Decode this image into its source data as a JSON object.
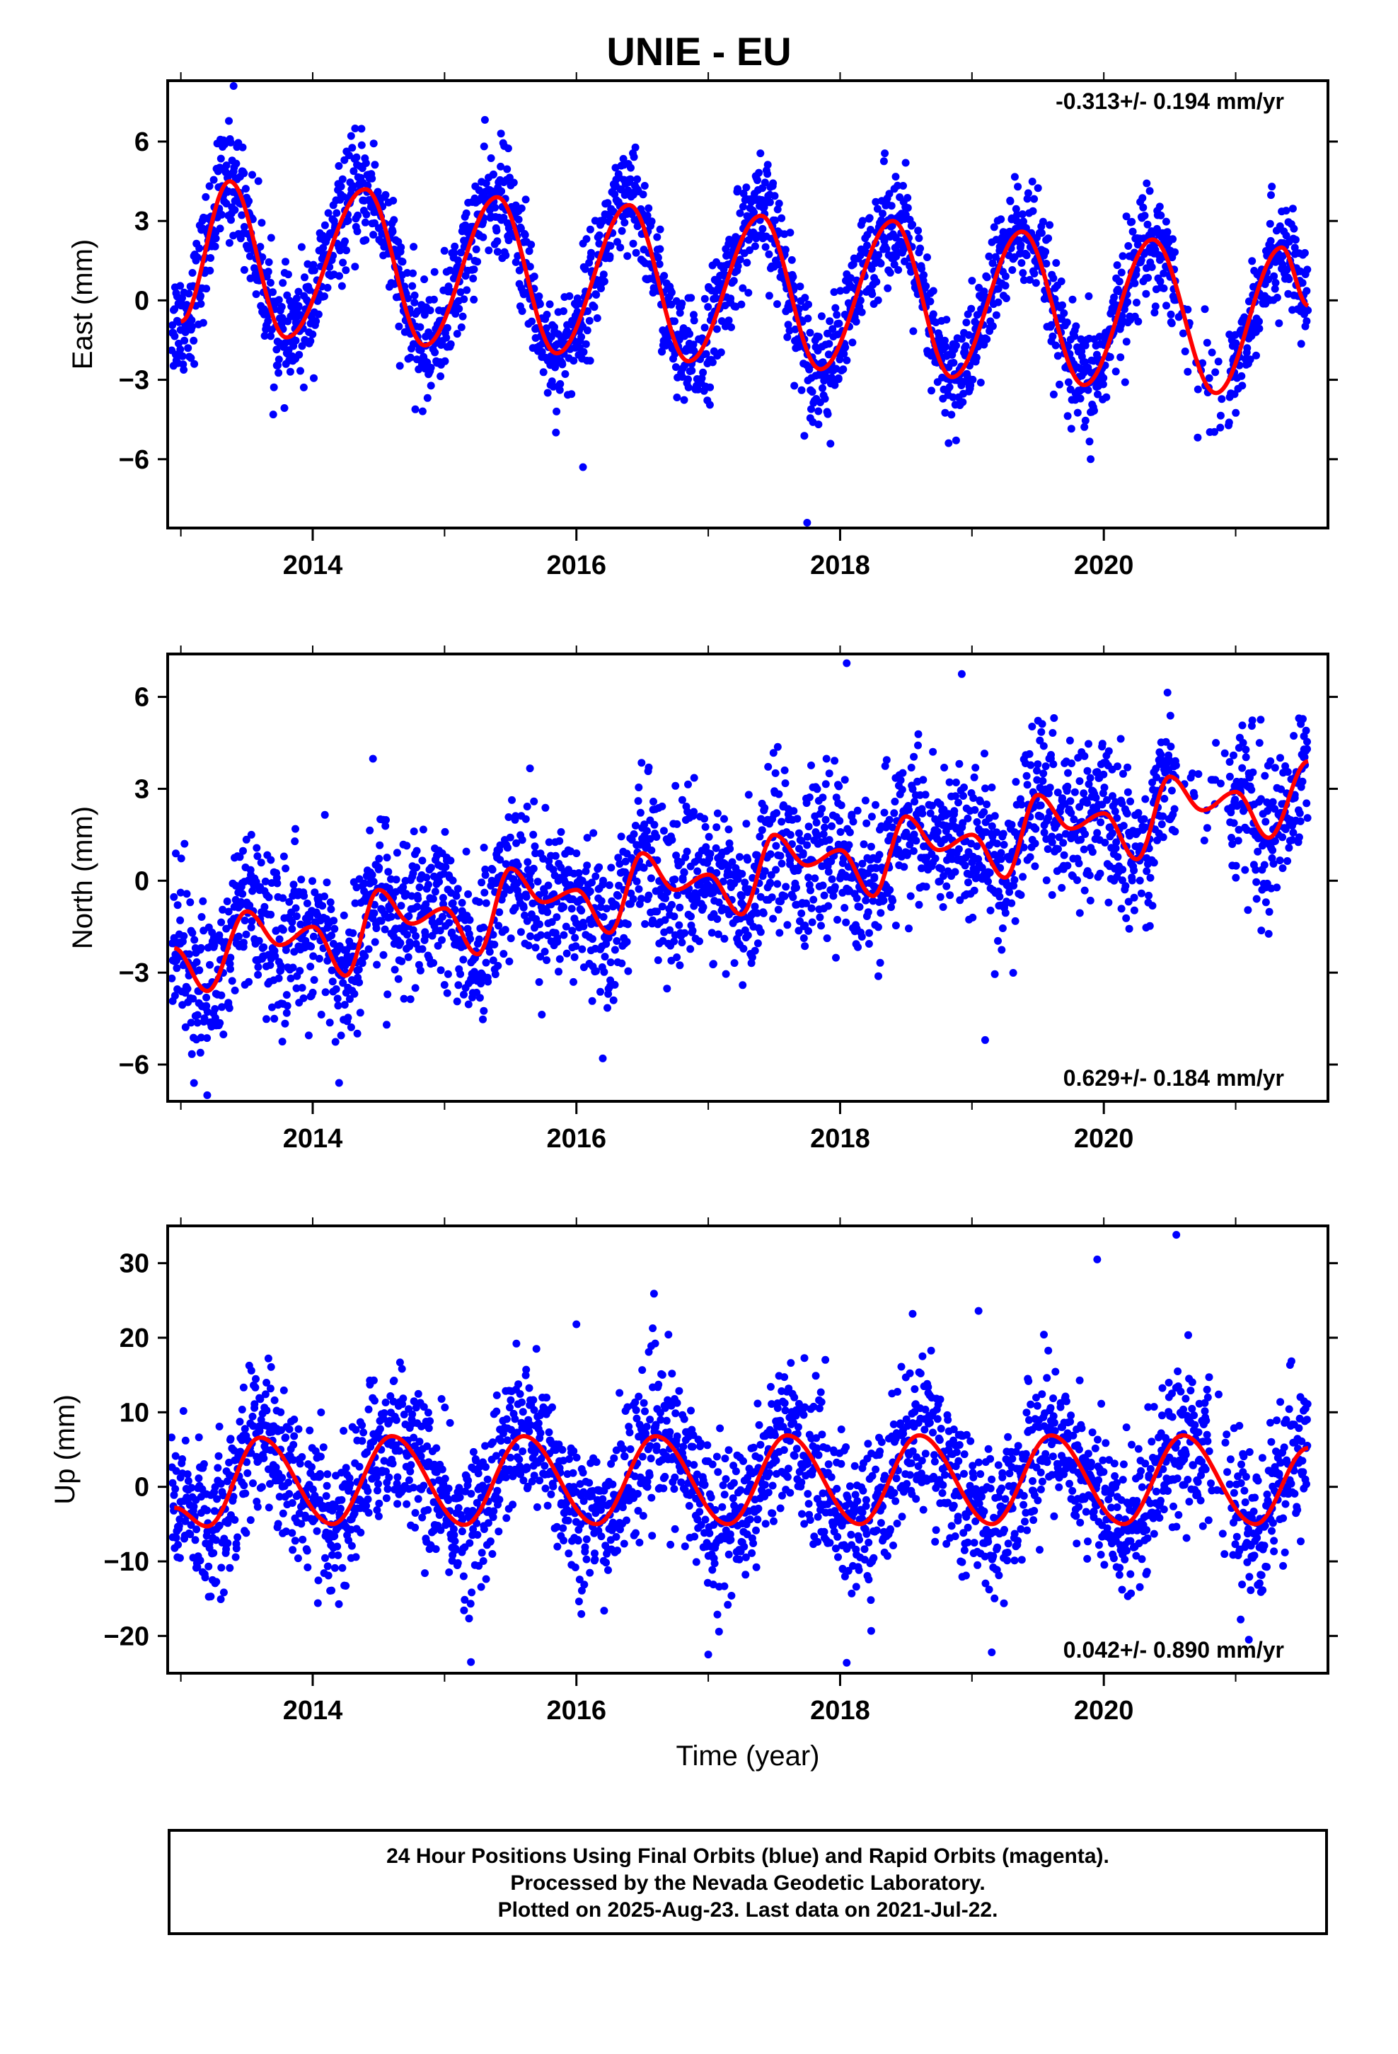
{
  "title": "UNIE - EU",
  "colors": {
    "points": "#0000ff",
    "fit": "#ff0000",
    "frame": "#000000"
  },
  "footer": {
    "line1": "24 Hour Positions Using Final Orbits (blue) and Rapid Orbits (magenta).",
    "line2": "Processed by the Nevada Geodetic Laboratory.",
    "line3": "Plotted on 2025-Aug-23. Last data on 2021-Jul-22."
  },
  "chart_data": [
    {
      "type": "scatter",
      "ylabel": "East (mm)",
      "xlabel": "",
      "xlim": [
        2012.9,
        2021.7
      ],
      "ylim": [
        -8.6,
        8.3
      ],
      "xticks": [
        "2014",
        "2016",
        "2018",
        "2020"
      ],
      "yticks": [
        -6,
        -3,
        0,
        3,
        6
      ],
      "ytick_labels": [
        "−6",
        "−3",
        "0",
        "3",
        "6"
      ],
      "rate_text": "-0.313+/- 0.194 mm/yr",
      "rate_position": "top-right",
      "series": [
        {
          "kind": "points",
          "x_start": 2012.93,
          "x_end": 2021.55,
          "offset": -0.2,
          "slope": -0.313,
          "amp": 3.0,
          "phase_peak": 0.38,
          "noise": 1.05
        },
        {
          "kind": "fit",
          "x_start": 2012.93,
          "x_end": 2021.55,
          "offset": 2.2,
          "slope": -0.313,
          "amp": 3.3,
          "phase_peak": 0.38,
          "semi_amp": 0.6,
          "label_fit": [
            [
              2013.0,
              -0.8
            ],
            [
              2013.37,
              4.5
            ],
            [
              2013.8,
              -1.4
            ],
            [
              2014.4,
              4.2
            ],
            [
              2014.85,
              -1.7
            ],
            [
              2015.4,
              3.9
            ],
            [
              2015.85,
              -2.0
            ],
            [
              2016.4,
              3.6
            ],
            [
              2016.85,
              -2.3
            ],
            [
              2017.4,
              3.2
            ],
            [
              2017.85,
              -2.6
            ],
            [
              2018.4,
              3.0
            ],
            [
              2018.85,
              -2.9
            ],
            [
              2019.38,
              2.6
            ],
            [
              2019.85,
              -3.2
            ],
            [
              2020.37,
              2.3
            ],
            [
              2020.85,
              -3.5
            ],
            [
              2021.35,
              2.0
            ],
            [
              2021.55,
              -0.2
            ]
          ]
        }
      ],
      "outliers": [
        [
          2013.4,
          8.1
        ],
        [
          2017.75,
          -8.4
        ],
        [
          2016.05,
          -6.3
        ],
        [
          2019.9,
          -6.0
        ]
      ]
    },
    {
      "type": "scatter",
      "ylabel": "North (mm)",
      "xlabel": "",
      "xlim": [
        2012.9,
        2021.7
      ],
      "ylim": [
        -7.2,
        7.4
      ],
      "xticks": [
        "2014",
        "2016",
        "2018",
        "2020"
      ],
      "yticks": [
        -6,
        -3,
        0,
        3,
        6
      ],
      "ytick_labels": [
        "−6",
        "−3",
        "0",
        "3",
        "6"
      ],
      "rate_text": "0.629+/- 0.184 mm/yr",
      "rate_position": "bottom-right",
      "series": [
        {
          "kind": "points",
          "x_start": 2012.93,
          "x_end": 2021.55,
          "offset": -2.6,
          "slope": 0.629,
          "amp": 0.8,
          "phase_peak": 0.55,
          "noise": 1.25
        },
        {
          "kind": "fit",
          "x_start": 2012.93,
          "x_end": 2021.55,
          "label_fit": [
            [
              2012.95,
              -2.2
            ],
            [
              2013.2,
              -3.6
            ],
            [
              2013.5,
              -1.0
            ],
            [
              2013.75,
              -2.1
            ],
            [
              2014.0,
              -1.5
            ],
            [
              2014.25,
              -3.1
            ],
            [
              2014.5,
              -0.3
            ],
            [
              2014.75,
              -1.4
            ],
            [
              2015.0,
              -0.9
            ],
            [
              2015.25,
              -2.4
            ],
            [
              2015.5,
              0.4
            ],
            [
              2015.75,
              -0.7
            ],
            [
              2016.0,
              -0.3
            ],
            [
              2016.25,
              -1.7
            ],
            [
              2016.5,
              0.9
            ],
            [
              2016.75,
              -0.3
            ],
            [
              2017.0,
              0.2
            ],
            [
              2017.25,
              -1.1
            ],
            [
              2017.5,
              1.5
            ],
            [
              2017.75,
              0.5
            ],
            [
              2018.0,
              1.0
            ],
            [
              2018.25,
              -0.5
            ],
            [
              2018.5,
              2.1
            ],
            [
              2018.75,
              1.0
            ],
            [
              2019.0,
              1.5
            ],
            [
              2019.25,
              0.1
            ],
            [
              2019.5,
              2.8
            ],
            [
              2019.75,
              1.7
            ],
            [
              2020.0,
              2.2
            ],
            [
              2020.25,
              0.7
            ],
            [
              2020.5,
              3.4
            ],
            [
              2020.75,
              2.3
            ],
            [
              2021.0,
              2.9
            ],
            [
              2021.25,
              1.4
            ],
            [
              2021.55,
              3.9
            ]
          ]
        }
      ],
      "outliers": [
        [
          2018.05,
          7.1
        ],
        [
          2019.1,
          -5.2
        ],
        [
          2016.2,
          -5.8
        ],
        [
          2013.2,
          -7.0
        ],
        [
          2014.2,
          -6.6
        ]
      ]
    },
    {
      "type": "scatter",
      "ylabel": "Up (mm)",
      "xlabel": "Time (year)",
      "xlim": [
        2012.9,
        2021.7
      ],
      "ylim": [
        -25,
        35
      ],
      "xticks": [
        "2014",
        "2016",
        "2018",
        "2020"
      ],
      "yticks": [
        -20,
        -10,
        0,
        10,
        20,
        30
      ],
      "ytick_labels": [
        "−20",
        "−10",
        "0",
        "10",
        "20",
        "30"
      ],
      "rate_text": "0.042+/- 0.890 mm/yr",
      "rate_position": "bottom-right",
      "series": [
        {
          "kind": "points",
          "x_start": 2012.93,
          "x_end": 2021.55,
          "offset": 0,
          "slope": 0.042,
          "amp": 6.0,
          "phase_peak": 0.62,
          "noise": 5.0
        },
        {
          "kind": "fit",
          "x_start": 2012.93,
          "x_end": 2021.55,
          "offset": 1.0,
          "slope": 0.042,
          "amp": 6.0,
          "phase_peak": 0.62,
          "semi_amp": 1.2,
          "label_fit": [
            [
              2012.95,
              -2.8
            ],
            [
              2013.2,
              -5.3
            ],
            [
              2013.6,
              6.6
            ],
            [
              2014.15,
              -5.0
            ],
            [
              2014.6,
              6.8
            ],
            [
              2015.15,
              -5.1
            ],
            [
              2015.6,
              6.8
            ],
            [
              2016.15,
              -5.0
            ],
            [
              2016.6,
              6.8
            ],
            [
              2017.15,
              -5.0
            ],
            [
              2017.6,
              6.9
            ],
            [
              2018.15,
              -5.0
            ],
            [
              2018.6,
              6.9
            ],
            [
              2019.15,
              -5.0
            ],
            [
              2019.6,
              6.9
            ],
            [
              2020.15,
              -5.0
            ],
            [
              2020.6,
              6.9
            ],
            [
              2021.15,
              -5.0
            ],
            [
              2021.55,
              5.2
            ]
          ]
        }
      ],
      "outliers": [
        [
          2020.55,
          33.8
        ],
        [
          2019.95,
          30.5
        ],
        [
          2019.05,
          23.6
        ],
        [
          2018.55,
          23.2
        ],
        [
          2015.2,
          -23.5
        ],
        [
          2018.05,
          -23.6
        ],
        [
          2019.15,
          -22.2
        ],
        [
          2016.0,
          21.8
        ],
        [
          2017.0,
          -22.5
        ],
        [
          2021.1,
          -20.5
        ]
      ]
    }
  ]
}
